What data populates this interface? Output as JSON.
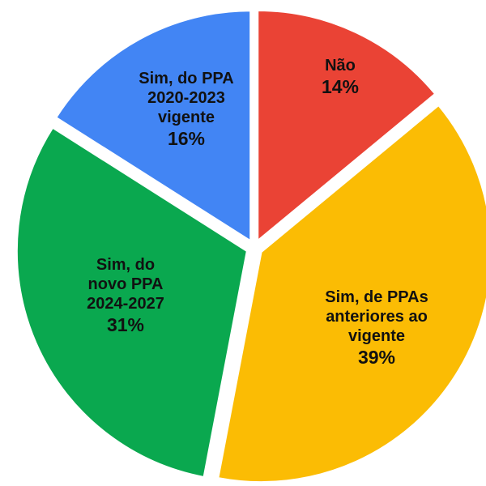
{
  "chart_data": {
    "type": "pie",
    "categories": [
      "Não",
      "Sim, de PPAs anteriores ao vigente",
      "Sim, do novo PPA 2024-2027",
      "Sim, do PPA 2020-2023 vigente"
    ],
    "values": [
      14,
      39,
      31,
      16
    ],
    "value_labels": [
      "14%",
      "39%",
      "31%",
      "16%"
    ],
    "colors": [
      "#ea4335",
      "#fbbc04",
      "#0aa84f",
      "#4285f4"
    ]
  }
}
